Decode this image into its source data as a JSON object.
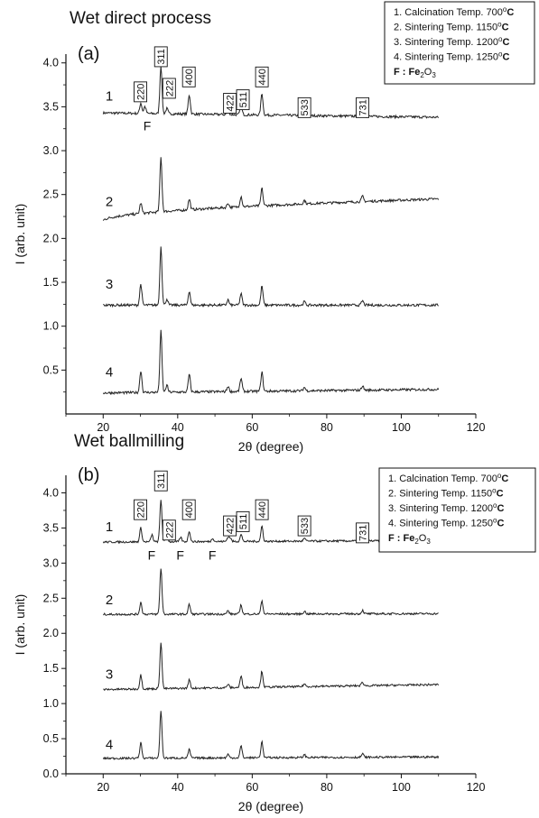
{
  "chart_data": [
    {
      "type": "line",
      "title": "Wet direct process",
      "panel_label": "(a)",
      "xlabel": "2θ (degree)",
      "ylabel": "I (arb. unit)",
      "xlim": [
        10,
        120
      ],
      "ylim": [
        0,
        4.1
      ],
      "x_ticks": [
        20,
        40,
        60,
        80,
        100,
        120
      ],
      "y_ticks": [
        0.5,
        1.0,
        1.5,
        2.0,
        2.5,
        3.0,
        3.5,
        4.0
      ],
      "x_tick_labels": [
        "20",
        "40",
        "60",
        "80",
        "100",
        "120"
      ],
      "y_tick_labels": [
        "0.5",
        "1.0",
        "1.5",
        "2.0",
        "2.5",
        "3.0",
        "3.5",
        "4.0"
      ],
      "legend": {
        "placement": "top-right",
        "entries": [
          {
            "text": "1. Calcination Temp. 700",
            "sup": "o",
            "unit": "C"
          },
          {
            "text": "2. Sintering Temp. 1150",
            "sup": "o",
            "unit": "C"
          },
          {
            "text": "3. Sintering Temp. 1200",
            "sup": "o",
            "unit": "C"
          },
          {
            "text": "4. Sintering Temp. 1250",
            "sup": "o",
            "unit": "C"
          },
          {
            "text": "F : Fe",
            "sub": "2",
            "text2": "O",
            "sub2": "3"
          }
        ]
      },
      "series": [
        {
          "name": "1",
          "baseline_start": 3.43,
          "baseline_end": 3.38,
          "peaks": [
            [
              30.1,
              0.12
            ],
            [
              31.2,
              0.08
            ],
            [
              35.5,
              0.55
            ],
            [
              37.1,
              0.06
            ],
            [
              43.1,
              0.22
            ],
            [
              53.5,
              0.06
            ],
            [
              57.0,
              0.1
            ],
            [
              62.6,
              0.25
            ],
            [
              74.0,
              0.04
            ],
            [
              89.6,
              0.04
            ]
          ]
        },
        {
          "name": "2",
          "baseline_start": 2.2,
          "baseline_end": 2.45,
          "peaks": [
            [
              30.1,
              0.12
            ],
            [
              35.5,
              0.62
            ],
            [
              43.1,
              0.12
            ],
            [
              53.5,
              0.05
            ],
            [
              57.0,
              0.12
            ],
            [
              62.6,
              0.2
            ],
            [
              74.0,
              0.04
            ],
            [
              89.6,
              0.06
            ]
          ]
        },
        {
          "name": "3",
          "baseline_start": 1.24,
          "baseline_end": 1.24,
          "peaks": [
            [
              30.1,
              0.24
            ],
            [
              35.5,
              0.67
            ],
            [
              37.1,
              0.07
            ],
            [
              43.1,
              0.16
            ],
            [
              53.5,
              0.06
            ],
            [
              57.0,
              0.13
            ],
            [
              62.6,
              0.22
            ],
            [
              74.0,
              0.04
            ],
            [
              89.6,
              0.05
            ]
          ]
        },
        {
          "name": "4",
          "baseline_start": 0.24,
          "baseline_end": 0.28,
          "peaks": [
            [
              30.1,
              0.25
            ],
            [
              35.5,
              0.7
            ],
            [
              37.1,
              0.08
            ],
            [
              43.1,
              0.2
            ],
            [
              53.5,
              0.06
            ],
            [
              57.0,
              0.15
            ],
            [
              62.6,
              0.22
            ],
            [
              74.0,
              0.04
            ],
            [
              89.6,
              0.05
            ]
          ]
        }
      ],
      "series_labels": [
        "1",
        "2",
        "3",
        "4"
      ],
      "series_label_y": [
        3.62,
        2.42,
        1.48,
        0.48
      ],
      "peak_labels": [
        {
          "text": "220",
          "x": 30.0,
          "y": 3.67
        },
        {
          "text": "311",
          "x": 35.5,
          "y": 4.07
        },
        {
          "text": "222",
          "x": 37.7,
          "y": 3.71
        },
        {
          "text": "400",
          "x": 43.0,
          "y": 3.84
        },
        {
          "text": "422",
          "x": 54.0,
          "y": 3.54
        },
        {
          "text": "511",
          "x": 57.5,
          "y": 3.58
        },
        {
          "text": "440",
          "x": 62.6,
          "y": 3.84
        },
        {
          "text": "533",
          "x": 74.0,
          "y": 3.49
        },
        {
          "text": "731",
          "x": 89.6,
          "y": 3.49
        }
      ],
      "fe2o3_marks": [
        {
          "text": "F",
          "x": 31.8,
          "y": 3.23
        }
      ]
    },
    {
      "type": "line",
      "title": "Wet ballmilling",
      "panel_label": "(b)",
      "xlabel": "2θ (degree)",
      "ylabel": "I (arb. unit)",
      "xlim": [
        10,
        120
      ],
      "ylim": [
        0,
        4.3
      ],
      "x_ticks": [
        20,
        40,
        60,
        80,
        100,
        120
      ],
      "y_ticks": [
        0.0,
        0.5,
        1.0,
        1.5,
        2.0,
        2.5,
        3.0,
        3.5,
        4.0
      ],
      "x_tick_labels": [
        "20",
        "40",
        "60",
        "80",
        "100",
        "120"
      ],
      "y_tick_labels": [
        "0.0",
        "0.5",
        "1.0",
        "1.5",
        "2.0",
        "2.5",
        "3.0",
        "3.5",
        "4.0"
      ],
      "legend": {
        "placement": "top-right",
        "entries": [
          {
            "text": "1. Calcination Temp. 700",
            "sup": "o",
            "unit": "C"
          },
          {
            "text": "2. Sintering Temp. 1150",
            "sup": "o",
            "unit": "C"
          },
          {
            "text": "3. Sintering Temp. 1200",
            "sup": "o",
            "unit": "C"
          },
          {
            "text": "4. Sintering Temp. 1250",
            "sup": "o",
            "unit": "C"
          },
          {
            "text": "F : Fe",
            "sub": "2",
            "text2": "O",
            "sub2": "3"
          }
        ]
      },
      "series": [
        {
          "name": "1",
          "baseline_start": 3.3,
          "baseline_end": 3.32,
          "peaks": [
            [
              30.1,
              0.2
            ],
            [
              33.1,
              0.1
            ],
            [
              35.5,
              0.6
            ],
            [
              37.1,
              0.08
            ],
            [
              40.8,
              0.06
            ],
            [
              43.1,
              0.15
            ],
            [
              49.4,
              0.05
            ],
            [
              53.5,
              0.06
            ],
            [
              54.1,
              0.05
            ],
            [
              57.0,
              0.1
            ],
            [
              62.6,
              0.22
            ],
            [
              74.0,
              0.04
            ],
            [
              89.6,
              0.04
            ]
          ]
        },
        {
          "name": "2",
          "baseline_start": 2.27,
          "baseline_end": 2.28,
          "peaks": [
            [
              30.1,
              0.17
            ],
            [
              35.5,
              0.66
            ],
            [
              43.1,
              0.14
            ],
            [
              53.5,
              0.05
            ],
            [
              57.0,
              0.13
            ],
            [
              62.6,
              0.19
            ],
            [
              74.0,
              0.04
            ],
            [
              89.6,
              0.05
            ]
          ]
        },
        {
          "name": "3",
          "baseline_start": 1.2,
          "baseline_end": 1.27,
          "peaks": [
            [
              30.1,
              0.2
            ],
            [
              35.5,
              0.66
            ],
            [
              43.1,
              0.12
            ],
            [
              53.5,
              0.05
            ],
            [
              57.0,
              0.16
            ],
            [
              62.6,
              0.23
            ],
            [
              74.0,
              0.04
            ],
            [
              89.6,
              0.05
            ]
          ]
        },
        {
          "name": "4",
          "baseline_start": 0.22,
          "baseline_end": 0.24,
          "peaks": [
            [
              30.1,
              0.22
            ],
            [
              35.5,
              0.68
            ],
            [
              43.1,
              0.12
            ],
            [
              53.5,
              0.05
            ],
            [
              57.0,
              0.17
            ],
            [
              62.6,
              0.23
            ],
            [
              74.0,
              0.04
            ],
            [
              89.6,
              0.05
            ]
          ]
        }
      ],
      "series_labels": [
        "1",
        "2",
        "3",
        "4"
      ],
      "series_label_y": [
        3.52,
        2.48,
        1.42,
        0.42
      ],
      "peak_labels": [
        {
          "text": "220",
          "x": 30.0,
          "y": 3.76
        },
        {
          "text": "311",
          "x": 35.5,
          "y": 4.17
        },
        {
          "text": "222",
          "x": 37.7,
          "y": 3.47
        },
        {
          "text": "400",
          "x": 43.0,
          "y": 3.76
        },
        {
          "text": "422",
          "x": 54.0,
          "y": 3.53
        },
        {
          "text": "511",
          "x": 57.5,
          "y": 3.59
        },
        {
          "text": "440",
          "x": 62.6,
          "y": 3.76
        },
        {
          "text": "533",
          "x": 74.0,
          "y": 3.53
        },
        {
          "text": "731",
          "x": 89.6,
          "y": 3.43
        }
      ],
      "fe2o3_marks": [
        {
          "text": "F",
          "x": 33.0,
          "y": 3.05
        },
        {
          "text": "F",
          "x": 40.7,
          "y": 3.05
        },
        {
          "text": "F",
          "x": 49.3,
          "y": 3.05
        }
      ]
    }
  ]
}
